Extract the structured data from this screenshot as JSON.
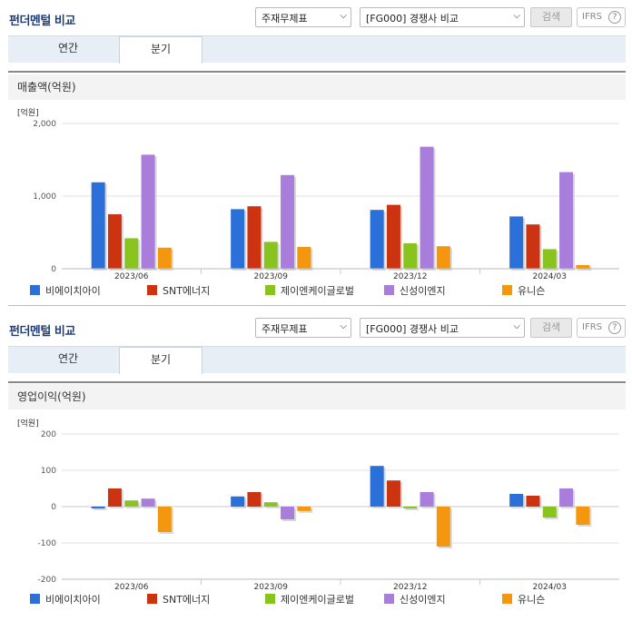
{
  "panels": [
    {
      "title": "펀더멘털 비교",
      "select1": "주재무제표",
      "select2": "[FG000] 경쟁사 비교",
      "search_label": "검색",
      "ifrs_label": "IFRS",
      "help_label": "?",
      "tabs": [
        "연간",
        "분기"
      ],
      "active_tab": 1,
      "section_title": "매출액(억원)"
    },
    {
      "title": "펀더멘털 비교",
      "select1": "주재무제표",
      "select2": "[FG000] 경쟁사 비교",
      "search_label": "검색",
      "ifrs_label": "IFRS",
      "help_label": "?",
      "tabs": [
        "연간",
        "분기"
      ],
      "active_tab": 1,
      "section_title": "영업이익(억원)"
    }
  ],
  "colors": {
    "비에이치아이": "#2b6fd8",
    "SNT에너지": "#cc3311",
    "제이엔케이글로벌": "#88c320",
    "신성이엔지": "#a97ddb",
    "유니슨": "#f5960f"
  },
  "chart_data": [
    {
      "type": "bar",
      "unit_label": "[억원]",
      "categories": [
        "2023/06",
        "2023/09",
        "2023/12",
        "2024/03"
      ],
      "ylim": [
        0,
        2000
      ],
      "yticks": [
        "0",
        "1,000",
        "2,000"
      ],
      "ytick_values": [
        0,
        1000,
        2000
      ],
      "series": [
        {
          "name": "비에이치아이",
          "values": [
            1190,
            820,
            810,
            720
          ]
        },
        {
          "name": "SNT에너지",
          "values": [
            750,
            860,
            880,
            610
          ]
        },
        {
          "name": "제이엔케이글로벌",
          "values": [
            420,
            370,
            350,
            270
          ]
        },
        {
          "name": "신성이엔지",
          "values": [
            1570,
            1290,
            1680,
            1330
          ]
        },
        {
          "name": "유니슨",
          "values": [
            290,
            300,
            310,
            50
          ]
        }
      ]
    },
    {
      "type": "bar",
      "unit_label": "[억원]",
      "categories": [
        "2023/06",
        "2023/09",
        "2023/12",
        "2024/03"
      ],
      "ylim": [
        -200,
        200
      ],
      "yticks": [
        "-200",
        "-100",
        "0",
        "100",
        "200"
      ],
      "ytick_values": [
        -200,
        -100,
        0,
        100,
        200
      ],
      "series": [
        {
          "name": "비에이치아이",
          "values": [
            -5,
            28,
            112,
            35
          ]
        },
        {
          "name": "SNT에너지",
          "values": [
            50,
            40,
            72,
            30
          ]
        },
        {
          "name": "제이엔케이글로벌",
          "values": [
            17,
            12,
            -5,
            -30
          ]
        },
        {
          "name": "신성이엔지",
          "values": [
            22,
            -35,
            40,
            50
          ]
        },
        {
          "name": "유니슨",
          "values": [
            -70,
            -12,
            -110,
            -50
          ]
        }
      ]
    }
  ]
}
